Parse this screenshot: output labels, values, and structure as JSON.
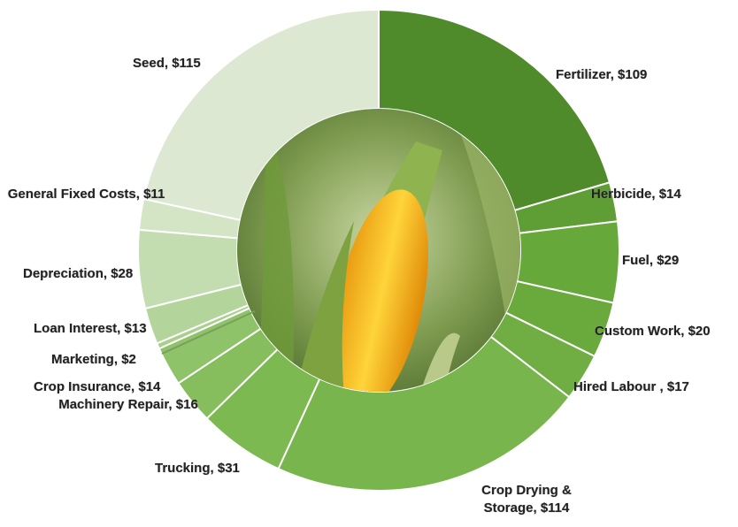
{
  "chart_data": {
    "type": "donut",
    "categories": [
      "Fertilizer,",
      "Herbicide,",
      "Fuel,",
      "Custom Work,",
      "Hired Labour ,",
      "Crop Drying & Storage,",
      "Trucking,",
      "Machinery Repair,",
      "Crop Insurance,",
      "Marketing,",
      "Loan Interest,",
      "Depreciation,",
      "General Fixed Costs,",
      "Seed,"
    ],
    "values": [
      109,
      14,
      29,
      20,
      17,
      114,
      31,
      16,
      14,
      2,
      13,
      28,
      11,
      115
    ],
    "value_labels": [
      "$109",
      "$14",
      "$29",
      "$20",
      "$17",
      "$114",
      "$31",
      "$16",
      "$14",
      "$2",
      "$13",
      "$28",
      "$11",
      "$115"
    ],
    "colors": [
      "#4f8a2b",
      "#5f9e35",
      "#67a83b",
      "#6aaa3d",
      "#70ae44",
      "#78b54c",
      "#7db951",
      "#86be5d",
      "#8fc36a",
      "#a8cf8e",
      "#b3d59b",
      "#c3ddb0",
      "#d3e5c5",
      "#dde8d2"
    ]
  }
}
